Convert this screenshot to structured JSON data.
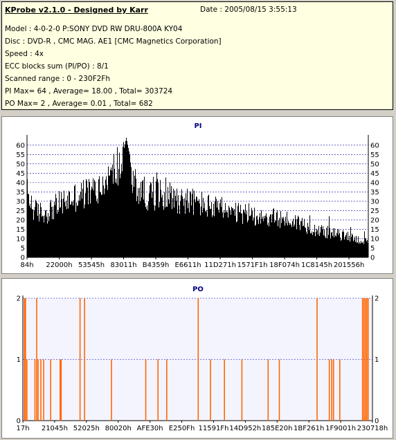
{
  "header": {
    "title": "KProbe v2.1.0 - Designed by Karr",
    "date": "Date : 2005/08/15 3:55:13",
    "lines": [
      "Model : 4-0-2-0 P:SONY    DVD RW DRU-800A  KY04",
      "Disc : DVD-R , CMC MAG. AE1 [CMC Magnetics Corporation]",
      "Speed : 4x",
      "ECC blocks sum (PI/PO) : 8/1",
      "Scanned range : 0 - 230F2Fh",
      "PI Max= 64 , Average= 18.00 , Total= 303724",
      "PO Max= 2 , Average= 0.01 , Total= 682"
    ]
  },
  "colors": {
    "pi_bars": "#000000",
    "po_bars": "#ff6600",
    "po_background": "#f4f4ff",
    "title": "#000080",
    "grid": "#0000aa"
  },
  "chart_data": [
    {
      "type": "bar",
      "title": "PI",
      "ylim": [
        0,
        64
      ],
      "yticks": [
        0,
        5,
        10,
        15,
        20,
        25,
        30,
        35,
        40,
        45,
        50,
        55,
        60
      ],
      "gridlines": [
        5,
        10,
        15,
        20,
        25,
        30,
        35,
        40,
        45,
        50,
        55,
        60
      ],
      "xlabels": [
        "84h",
        "22000h",
        "53545h",
        "83011h",
        "B4359h",
        "E6611h",
        "11D271h",
        "1571F1h",
        "18F074h",
        "1C8145h",
        "201556h"
      ],
      "profile_x": [
        0,
        0.02,
        0.05,
        0.1,
        0.15,
        0.2,
        0.23,
        0.25,
        0.27,
        0.29,
        0.3,
        0.32,
        0.36,
        0.4,
        0.45,
        0.5,
        0.55,
        0.6,
        0.65,
        0.7,
        0.75,
        0.8,
        0.85,
        0.9,
        0.95,
        1.0
      ],
      "profile_y": [
        35,
        26,
        24,
        30,
        34,
        37,
        40,
        46,
        52,
        50,
        46,
        38,
        34,
        35,
        32,
        30,
        27,
        24,
        24,
        22,
        21,
        19,
        15,
        13,
        11,
        8
      ],
      "peak": {
        "position": 0.29,
        "value": 64
      }
    },
    {
      "type": "bar",
      "title": "PO",
      "ylim": [
        0,
        2
      ],
      "yticks": [
        0,
        1,
        2
      ],
      "gridlines": [
        1,
        2
      ],
      "xlabels": [
        "17h",
        "21045h",
        "52025h",
        "80020h",
        "AFE30h",
        "E250Fh",
        "11591Fh",
        "14D952h",
        "185E20h",
        "1BF261h",
        "1F9001h",
        "230718h"
      ],
      "spikes": [
        [
          0.003,
          2
        ],
        [
          0.006,
          2
        ],
        [
          0.01,
          1
        ],
        [
          0.033,
          1
        ],
        [
          0.038,
          2
        ],
        [
          0.042,
          1
        ],
        [
          0.05,
          1
        ],
        [
          0.058,
          1
        ],
        [
          0.078,
          1
        ],
        [
          0.105,
          1
        ],
        [
          0.108,
          1
        ],
        [
          0.162,
          2
        ],
        [
          0.175,
          2
        ],
        [
          0.252,
          1
        ],
        [
          0.35,
          1
        ],
        [
          0.385,
          1
        ],
        [
          0.41,
          1
        ],
        [
          0.5,
          2
        ],
        [
          0.535,
          1
        ],
        [
          0.575,
          1
        ],
        [
          0.625,
          1
        ],
        [
          0.7,
          1
        ],
        [
          0.732,
          1
        ],
        [
          0.84,
          2
        ],
        [
          0.875,
          1
        ],
        [
          0.882,
          1
        ],
        [
          0.887,
          1
        ],
        [
          0.905,
          1
        ],
        [
          0.97,
          2
        ],
        [
          0.974,
          2
        ],
        [
          0.978,
          2
        ],
        [
          0.982,
          2
        ],
        [
          0.986,
          2
        ]
      ]
    }
  ]
}
